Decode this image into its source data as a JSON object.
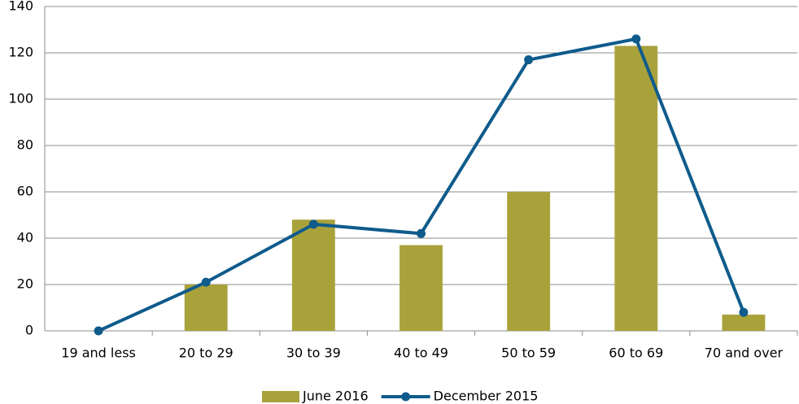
{
  "chart_data": {
    "type": "bar",
    "categories": [
      "19 and less",
      "20 to 29",
      "30 to 39",
      "40 to 49",
      "50 to 59",
      "60 to 69",
      "70 and over"
    ],
    "series": [
      {
        "name": "June 2016",
        "type": "bar",
        "color": "#a9a23b",
        "values": [
          0,
          20,
          48,
          37,
          60,
          123,
          7
        ]
      },
      {
        "name": "December 2015",
        "type": "line",
        "color": "#0f5b8c",
        "values": [
          0,
          21,
          46,
          42,
          117,
          126,
          8
        ]
      }
    ],
    "ylim": [
      0,
      140
    ],
    "yticks": [
      0,
      20,
      40,
      60,
      80,
      100,
      120,
      140
    ],
    "grid": true,
    "legend": "bottom"
  }
}
